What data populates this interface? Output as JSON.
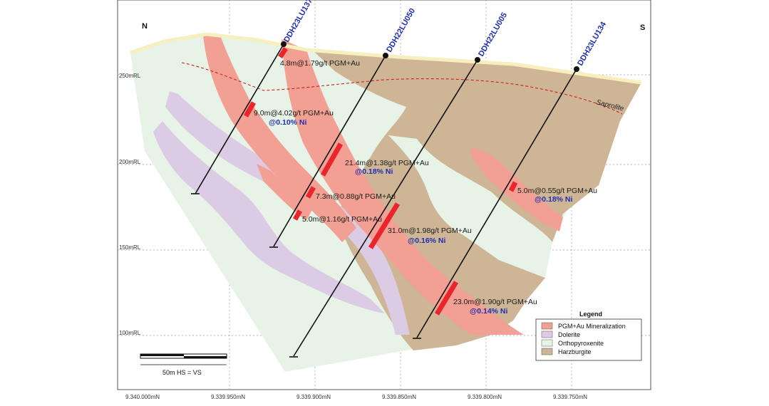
{
  "compass": {
    "north": "N",
    "south": "S"
  },
  "y_axis_labels": [
    "250mRL",
    "200mRL",
    "150mRL",
    "100mRL"
  ],
  "x_axis_labels": [
    "9.340.000mN",
    "9.339.950mN",
    "9.339.900mN",
    "9.339.850mN",
    "9.339.800mN",
    "9.339.750mN"
  ],
  "saprolite_label": "Saprolite",
  "drillholes": [
    "DDH23LU137",
    "DDH22LU050",
    "DDH22LU005",
    "DDH23LU134"
  ],
  "intercepts": [
    {
      "main": "4.8m@1.79g/t PGM+Au",
      "ni": ""
    },
    {
      "main": "9.0m@4.02g/t PGM+Au",
      "ni": "@0.10% Ni"
    },
    {
      "main": "21.4m@1.38g/t PGM+Au",
      "ni": "@0.18% Ni"
    },
    {
      "main": "7.3m@0.88g/t PGM+Au",
      "ni": ""
    },
    {
      "main": "5.0m@1.16g/t PGM+Au",
      "ni": ""
    },
    {
      "main": "31.0m@1.98g/t PGM+Au",
      "ni": "@0.16% Ni"
    },
    {
      "main": "5.0m@0.55g/t PGM+Au",
      "ni": "@0.18% Ni"
    },
    {
      "main": "23.0m@1.90g/t PGM+Au",
      "ni": "@0.14% Ni"
    }
  ],
  "legend": {
    "title": "Legend",
    "items": [
      {
        "label": "PGM+Au Mineralization",
        "color": "#f2a093"
      },
      {
        "label": "Dolerite",
        "color": "#dccbe4"
      },
      {
        "label": "Orthopyroxenite",
        "color": "#e6f3e6"
      },
      {
        "label": "Harzburgite",
        "color": "#cdb595"
      }
    ]
  },
  "scale": {
    "label": "50m  HS = VS"
  },
  "colors": {
    "orthopyroxenite": "#e6f3e6",
    "harzburgite": "#cdb595",
    "dolerite": "#dccbe4",
    "mineralization": "#f2a093",
    "intercept": "#e8262c",
    "topo": "#f7efbf",
    "drill": "#111111",
    "saprolite_line": "#d21d1d",
    "hole_label": "#1f2fb0"
  }
}
